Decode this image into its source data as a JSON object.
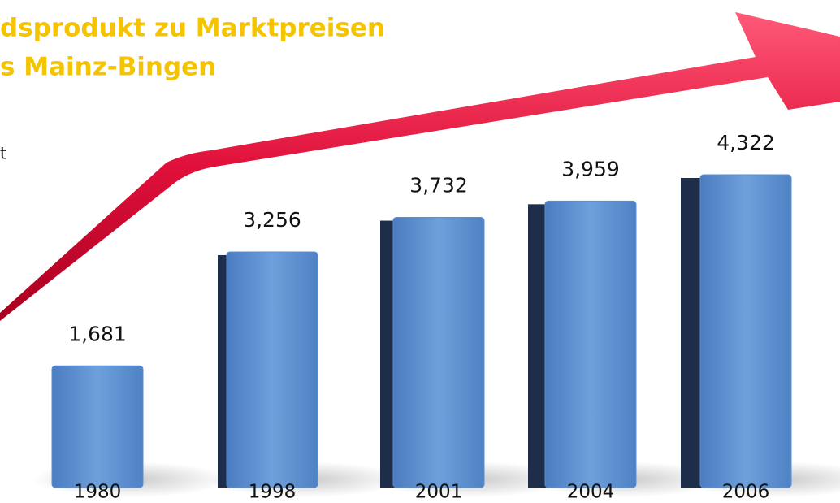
{
  "chart_data": {
    "type": "bar",
    "title": "dsprodukt zu Marktpreisen",
    "subtitle": "s Mainz-Bingen",
    "annotation": "t",
    "title_color": "#f5c400",
    "categories": [
      "1980",
      "1998",
      "2001",
      "2004",
      "2006"
    ],
    "values": [
      1681,
      3256,
      3732,
      3959,
      4322
    ],
    "value_labels": [
      "1,681",
      "3,256",
      "3,732",
      "3,959",
      "4,322"
    ],
    "color": "#5b8fd0"
  }
}
